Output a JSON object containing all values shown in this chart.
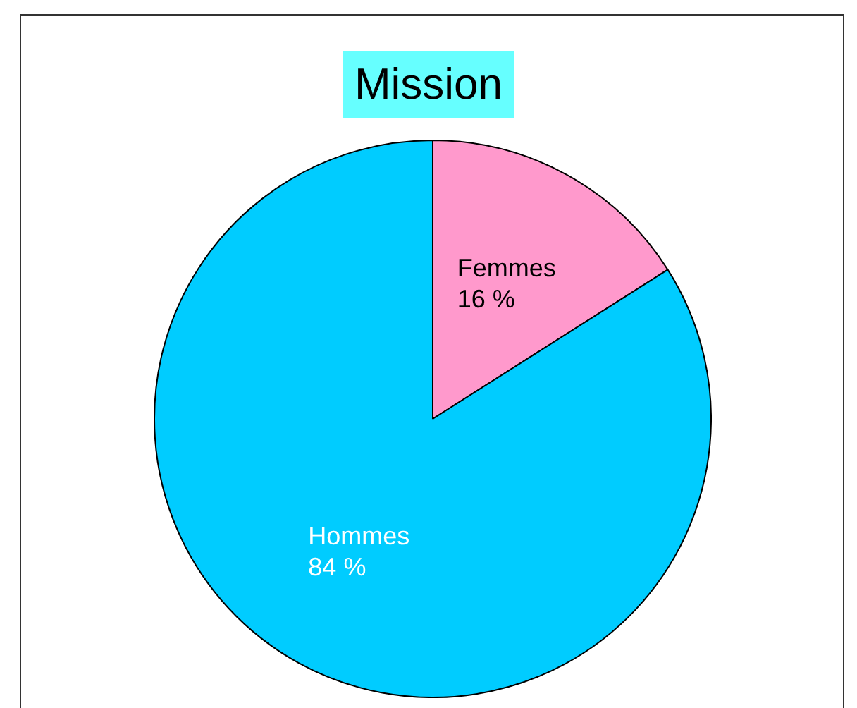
{
  "chart_data": {
    "type": "pie",
    "title": "Mission",
    "categories": [
      "Femmes",
      "Hommes"
    ],
    "values": [
      16,
      84
    ],
    "colors": [
      "#ff99cc",
      "#00ccff"
    ],
    "value_labels": [
      "16 %",
      "84 %"
    ],
    "legend": false
  }
}
